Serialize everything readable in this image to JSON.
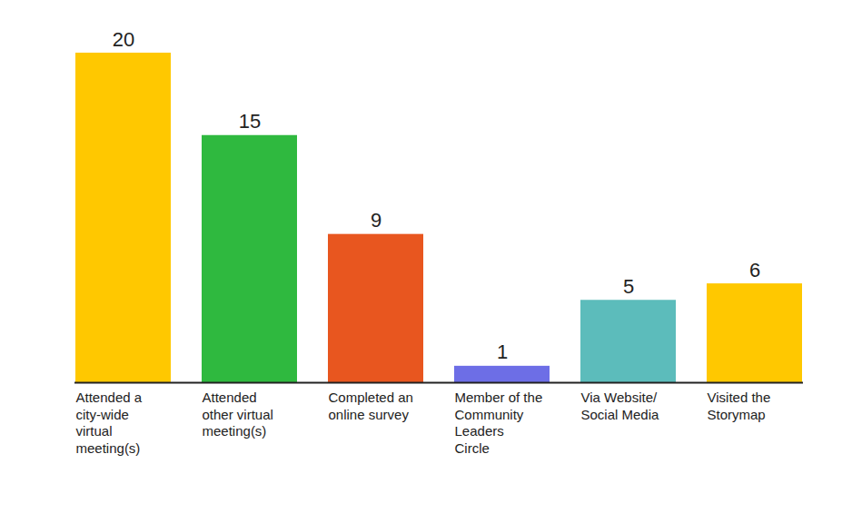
{
  "chart_data": {
    "type": "bar",
    "categories": [
      "Attended a city-wide virtual meeting(s)",
      "Attended other virtual meeting(s)",
      "Completed an online survey",
      "Member of the Community Leaders Circle",
      "Via Website/ Social Media",
      "Visited the Storymap"
    ],
    "values": [
      20,
      15,
      9,
      1,
      5,
      6
    ],
    "colors": [
      "#ffc800",
      "#2fb93f",
      "#e8561f",
      "#6d6ee6",
      "#5cbcbb",
      "#ffc800"
    ],
    "ylim": [
      0,
      20
    ],
    "tick_labels": "x",
    "data_labels": true
  }
}
